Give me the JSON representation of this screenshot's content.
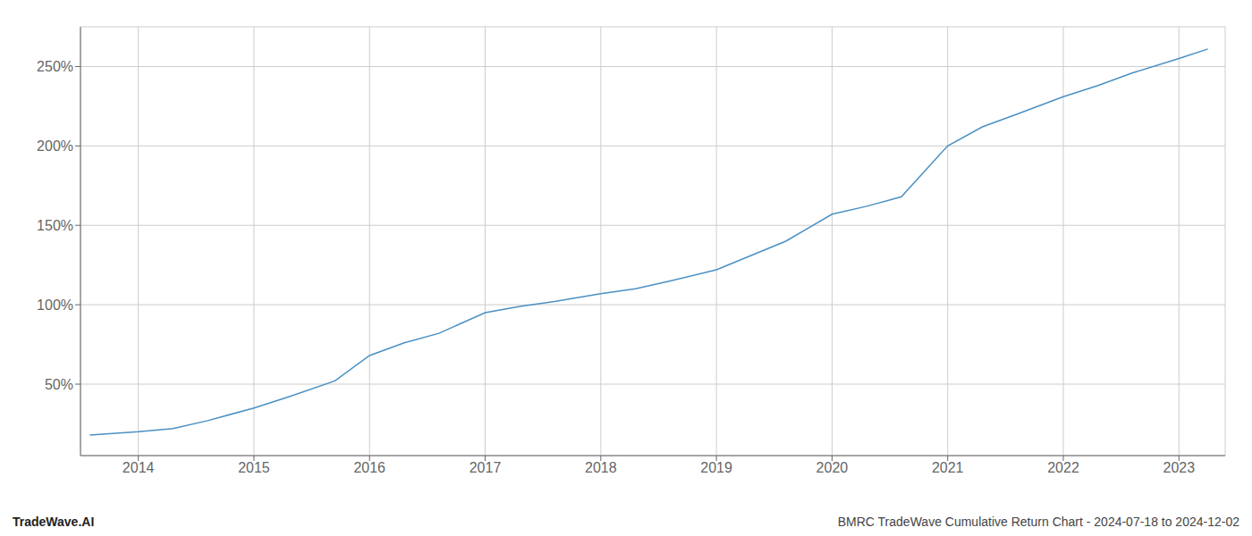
{
  "chart_data": {
    "type": "line",
    "x": [
      2013.58,
      2014.0,
      2014.3,
      2014.6,
      2015.0,
      2015.3,
      2015.7,
      2016.0,
      2016.3,
      2016.6,
      2017.0,
      2017.3,
      2017.6,
      2018.0,
      2018.3,
      2018.6,
      2019.0,
      2019.3,
      2019.6,
      2020.0,
      2020.3,
      2020.6,
      2021.0,
      2021.3,
      2021.6,
      2022.0,
      2022.3,
      2022.6,
      2023.0,
      2023.25
    ],
    "values": [
      18,
      20,
      22,
      27,
      35,
      42,
      52,
      68,
      76,
      82,
      95,
      99,
      102,
      107,
      110,
      115,
      122,
      131,
      140,
      157,
      162,
      168,
      200,
      212,
      220,
      231,
      238,
      246,
      255,
      261
    ],
    "color": "#4a90c4",
    "xlim": [
      2013.5,
      2023.4
    ],
    "xticks": [
      2014,
      2015,
      2016,
      2017,
      2018,
      2019,
      2020,
      2021,
      2022,
      2023
    ],
    "ylim": [
      5,
      275
    ],
    "yticks": [
      {
        "value": 50,
        "label": "50%"
      },
      {
        "value": 100,
        "label": "100%"
      },
      {
        "value": 150,
        "label": "150%"
      },
      {
        "value": 200,
        "label": "200%"
      },
      {
        "value": 250,
        "label": "250%"
      }
    ],
    "grid": true,
    "annotations": [
      "TradeWave.AI",
      "BMRC TradeWave Cumulative Return Chart - 2024-07-18 to 2024-12-02"
    ]
  }
}
